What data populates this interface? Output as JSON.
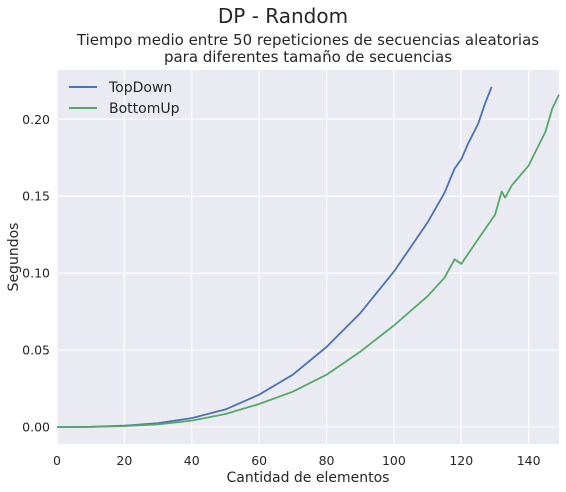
{
  "chart_data": {
    "type": "line",
    "suptitle": "DP - Random",
    "title_line1": "Tiempo medio entre 50 repeticiones de secuencias aleatorias",
    "title_line2": "para diferentes tamaño de secuencias",
    "xlabel": "Cantidad de elementos",
    "ylabel": "Segundos",
    "xlim": [
      0,
      149
    ],
    "ylim": [
      -0.011,
      0.232
    ],
    "xticks": [
      0,
      20,
      40,
      60,
      80,
      100,
      120,
      140
    ],
    "yticks": [
      0.0,
      0.05,
      0.1,
      0.15,
      0.2
    ],
    "ytick_labels": [
      "0.00",
      "0.05",
      "0.10",
      "0.15",
      "0.20"
    ],
    "grid": true,
    "legend": "top-left",
    "series": [
      {
        "name": "TopDown",
        "color": "#4c72b0",
        "points": [
          [
            0,
            0
          ],
          [
            10,
            0.0002
          ],
          [
            20,
            0.0009
          ],
          [
            30,
            0.0026
          ],
          [
            40,
            0.0058
          ],
          [
            50,
            0.0115
          ],
          [
            60,
            0.021
          ],
          [
            70,
            0.034
          ],
          [
            80,
            0.052
          ],
          [
            90,
            0.074
          ],
          [
            100,
            0.101
          ],
          [
            105,
            0.117
          ],
          [
            110,
            0.133
          ],
          [
            115,
            0.152
          ],
          [
            118,
            0.168
          ],
          [
            120,
            0.174
          ],
          [
            122,
            0.184
          ],
          [
            125,
            0.197
          ],
          [
            127,
            0.21
          ],
          [
            129,
            0.221
          ]
        ]
      },
      {
        "name": "BottomUp",
        "color": "#55a868",
        "points": [
          [
            0,
            0
          ],
          [
            10,
            0.0001
          ],
          [
            20,
            0.0006
          ],
          [
            30,
            0.0018
          ],
          [
            40,
            0.0042
          ],
          [
            50,
            0.0085
          ],
          [
            60,
            0.015
          ],
          [
            70,
            0.023
          ],
          [
            80,
            0.034
          ],
          [
            90,
            0.049
          ],
          [
            100,
            0.066
          ],
          [
            110,
            0.085
          ],
          [
            115,
            0.097
          ],
          [
            118,
            0.109
          ],
          [
            120,
            0.106
          ],
          [
            125,
            0.122
          ],
          [
            130,
            0.138
          ],
          [
            132,
            0.153
          ],
          [
            133,
            0.149
          ],
          [
            135,
            0.157
          ],
          [
            140,
            0.17
          ],
          [
            145,
            0.192
          ],
          [
            147,
            0.207
          ],
          [
            149,
            0.216
          ]
        ]
      }
    ]
  }
}
